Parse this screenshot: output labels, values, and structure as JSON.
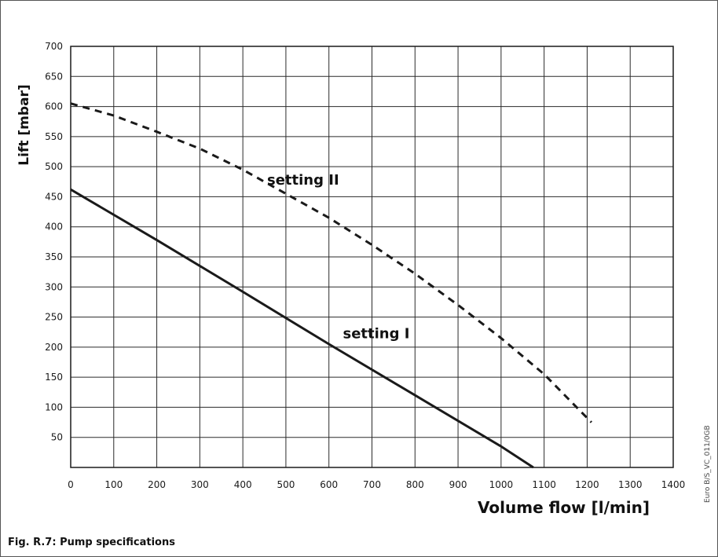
{
  "chart_data": {
    "type": "line",
    "caption": "Fig. R.7: Pump specifications",
    "side_code": "Euro B/S_VC_011/0GB",
    "xlabel": "Volume flow [l/min]",
    "ylabel": "Lift [mbar]",
    "xlim": [
      0,
      1400
    ],
    "ylim": [
      0,
      700
    ],
    "x_ticks": [
      0,
      100,
      200,
      300,
      400,
      500,
      600,
      700,
      800,
      900,
      1000,
      1100,
      1200,
      1300,
      1400
    ],
    "y_ticks": [
      50,
      100,
      150,
      200,
      250,
      300,
      350,
      400,
      450,
      500,
      550,
      600,
      650,
      700
    ],
    "grid": true,
    "series": [
      {
        "name": "setting I",
        "style": "solid",
        "color": "#1a1a1a",
        "x": [
          0,
          200,
          400,
          600,
          800,
          1000,
          1075
        ],
        "y": [
          462,
          378,
          292,
          205,
          120,
          35,
          0
        ]
      },
      {
        "name": "setting II",
        "style": "dashed",
        "color": "#1a1a1a",
        "x": [
          0,
          100,
          200,
          300,
          400,
          500,
          600,
          700,
          800,
          900,
          1000,
          1100,
          1210
        ],
        "y": [
          605,
          585,
          558,
          530,
          495,
          455,
          415,
          370,
          322,
          270,
          215,
          155,
          75
        ]
      }
    ],
    "annotations": [
      {
        "text": "setting II",
        "x": 540,
        "y": 470
      },
      {
        "text": "setting I",
        "x": 710,
        "y": 215
      }
    ]
  }
}
